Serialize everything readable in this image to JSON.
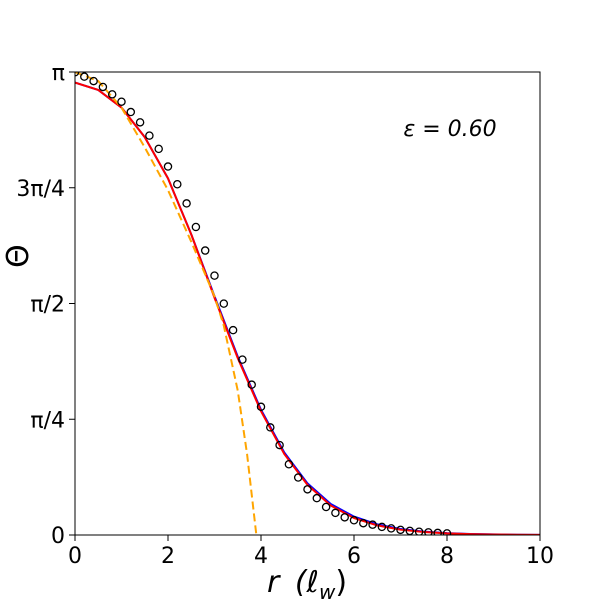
{
  "chart_data": {
    "type": "line",
    "xlabel_main": "r",
    "xlabel_unit": "(ℓ",
    "xlabel_sub": "w",
    "xlabel_close": ")",
    "ylabel": "Θ",
    "annotation": "ε = 0.60",
    "xlim": [
      0,
      10
    ],
    "ylim": [
      0,
      3.14159265
    ],
    "x_ticks": [
      {
        "value": 0,
        "label": "0"
      },
      {
        "value": 2,
        "label": "2"
      },
      {
        "value": 4,
        "label": "4"
      },
      {
        "value": 6,
        "label": "6"
      },
      {
        "value": 8,
        "label": "8"
      },
      {
        "value": 10,
        "label": "10"
      }
    ],
    "y_ticks": [
      {
        "value": 0,
        "label": "0"
      },
      {
        "value": 0.785398,
        "label": "π/4"
      },
      {
        "value": 1.570796,
        "label": "π/2"
      },
      {
        "value": 2.356194,
        "label": "3π/4"
      },
      {
        "value": 3.14159265,
        "label": "π"
      }
    ],
    "series": [
      {
        "style": "solid",
        "color": "#0000ff",
        "x": [
          0,
          0.5,
          1,
          1.5,
          2,
          2.5,
          3,
          3.5,
          4,
          4.5,
          5,
          5.5,
          6,
          6.5,
          7,
          7.5,
          8,
          8.5,
          9,
          9.5,
          10
        ],
        "y": [
          3.07,
          3.02,
          2.9,
          2.7,
          2.42,
          2.04,
          1.62,
          1.21,
          0.85,
          0.56,
          0.35,
          0.21,
          0.125,
          0.072,
          0.041,
          0.023,
          0.013,
          0.007,
          0.004,
          0.002,
          0.001
        ]
      },
      {
        "style": "solid",
        "color": "#ff0000",
        "x": [
          0,
          0.5,
          1,
          1.5,
          2,
          2.5,
          3,
          3.5,
          4,
          4.5,
          5,
          5.5,
          6,
          6.5,
          7,
          7.5,
          8,
          8.5,
          9,
          9.5,
          10
        ],
        "y": [
          3.07,
          3.02,
          2.9,
          2.7,
          2.42,
          2.04,
          1.61,
          1.2,
          0.84,
          0.55,
          0.34,
          0.2,
          0.115,
          0.065,
          0.036,
          0.02,
          0.011,
          0.006,
          0.003,
          0.002,
          0.001
        ]
      },
      {
        "style": "dashed",
        "color": "#ffa500",
        "x": [
          0,
          0.5,
          1,
          1.5,
          2,
          2.5,
          3,
          3.2,
          3.5,
          3.7,
          3.9
        ],
        "y": [
          3.14159,
          3.08,
          2.9,
          2.63,
          2.34,
          1.99,
          1.62,
          1.42,
          0.98,
          0.55,
          0.0
        ]
      },
      {
        "style": "markers",
        "marker": "circle-open",
        "color": "#000000",
        "x": [
          0,
          0.2,
          0.4,
          0.6,
          0.8,
          1.0,
          1.2,
          1.4,
          1.6,
          1.8,
          2.0,
          2.2,
          2.4,
          2.6,
          2.8,
          3.0,
          3.2,
          3.4,
          3.6,
          3.8,
          4.0,
          4.2,
          4.4,
          4.6,
          4.8,
          5.0,
          5.2,
          5.4,
          5.6,
          5.8,
          6.0,
          6.2,
          6.4,
          6.6,
          6.8,
          7.0,
          7.2,
          7.4,
          7.6,
          7.8,
          8.0
        ],
        "y": [
          3.14,
          3.11,
          3.08,
          3.04,
          2.99,
          2.94,
          2.87,
          2.8,
          2.71,
          2.62,
          2.5,
          2.38,
          2.25,
          2.09,
          1.93,
          1.76,
          1.57,
          1.39,
          1.19,
          1.02,
          0.87,
          0.73,
          0.61,
          0.48,
          0.39,
          0.31,
          0.25,
          0.19,
          0.15,
          0.12,
          0.1,
          0.08,
          0.07,
          0.055,
          0.045,
          0.035,
          0.028,
          0.022,
          0.018,
          0.014,
          0.011
        ]
      }
    ]
  }
}
